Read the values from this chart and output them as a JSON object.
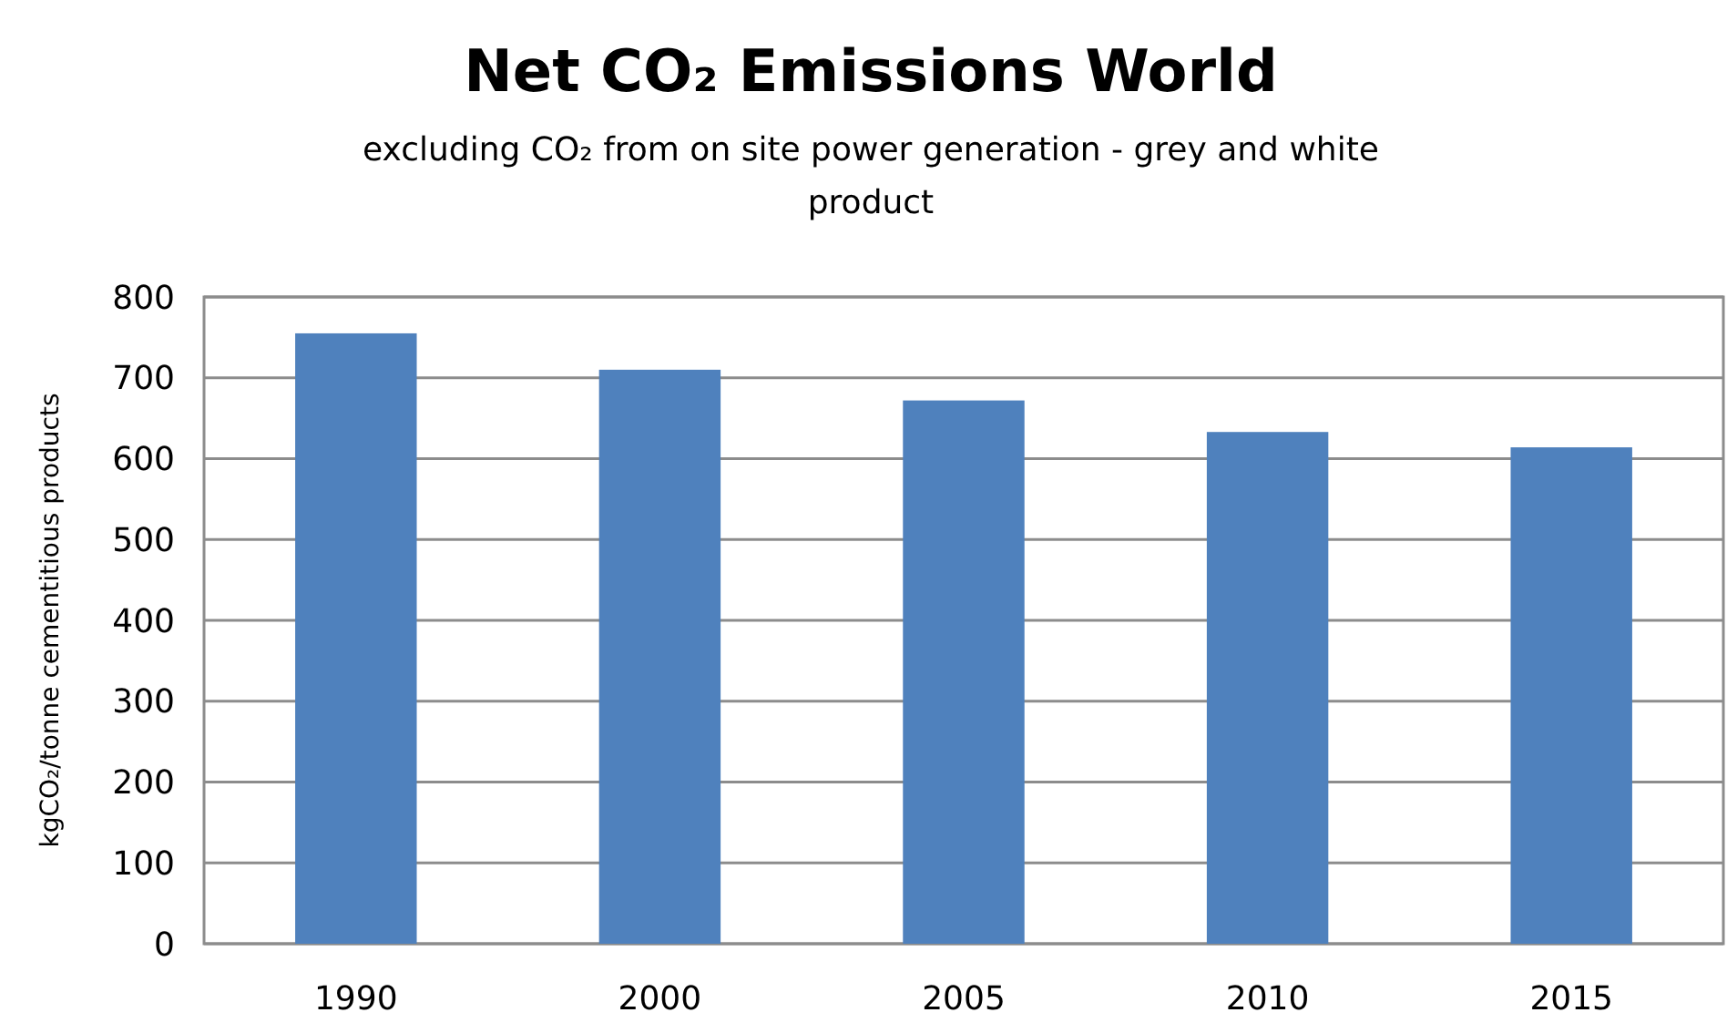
{
  "chart_data": {
    "type": "bar",
    "title": "Net CO₂ Emissions World",
    "subtitle": "excluding CO₂ from on site power generation - grey and white product",
    "ylabel": "kgCO₂/tonne cementitious products",
    "categories": [
      "1990",
      "2000",
      "2005",
      "2010",
      "2015"
    ],
    "values": [
      755,
      710,
      672,
      633,
      614
    ],
    "color": "#4f81bd",
    "ylim": [
      0,
      800
    ],
    "yticks": [
      0,
      100,
      200,
      300,
      400,
      500,
      600,
      700,
      800
    ],
    "grid": true
  }
}
